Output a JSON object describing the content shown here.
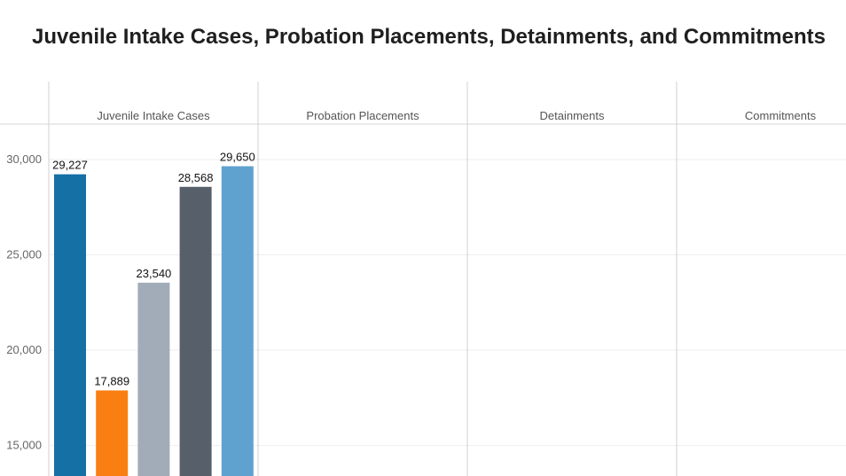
{
  "title": "Juvenile Intake Cases, Probation Placements, Detainments, and Commitments",
  "chart_data": {
    "type": "bar",
    "title": "Juvenile Intake Cases, Probation Placements, Detainments, and Commitments",
    "panels": [
      "Juvenile Intake Cases",
      "Probation Placements",
      "Detainments",
      "Commitments"
    ],
    "series": [
      {
        "panel": "Juvenile Intake Cases",
        "values": [
          29227,
          17889,
          23540,
          28568,
          29650
        ],
        "labels": [
          "29,227",
          "17,889",
          "23,540",
          "28,568",
          "29,650"
        ],
        "colors": [
          "#1570a6",
          "#f97f12",
          "#a2acb8",
          "#575f6b",
          "#5fa2cf"
        ]
      }
    ],
    "y_ticks": [
      {
        "value": 30000,
        "label": "30,000"
      },
      {
        "value": 25000,
        "label": "25,000"
      },
      {
        "value": 20000,
        "label": "20,000"
      },
      {
        "value": 15000,
        "label": "15,000"
      }
    ],
    "ylim": [
      13400,
      31860
    ],
    "grid": true,
    "xlabel": "",
    "ylabel": ""
  }
}
